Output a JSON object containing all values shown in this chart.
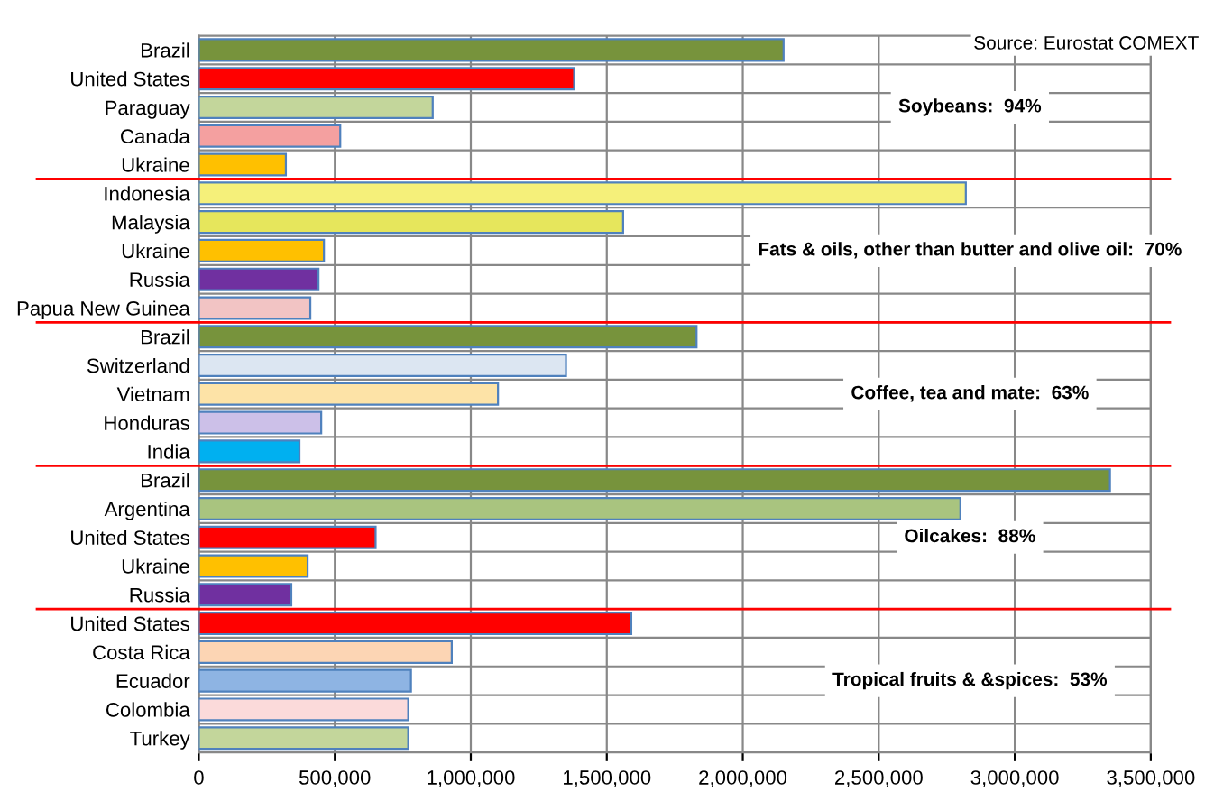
{
  "chart_data": {
    "type": "bar",
    "orientation": "horizontal",
    "categories": [
      "Brazil",
      "United States",
      "Paraguay",
      "Canada",
      "Ukraine",
      "Indonesia",
      "Malaysia",
      "Ukraine",
      "Russia",
      "Papua New Guinea",
      "Brazil",
      "Switzerland",
      "Vietnam",
      "Honduras",
      "India",
      "Brazil",
      "Argentina",
      "United States",
      "Ukraine",
      "Russia",
      "United States",
      "Costa Rica",
      "Ecuador",
      "Colombia",
      "Turkey"
    ],
    "values": [
      2150000,
      1380000,
      860000,
      520000,
      320000,
      2820000,
      1560000,
      460000,
      440000,
      410000,
      1830000,
      1350000,
      1100000,
      450000,
      370000,
      3350000,
      2800000,
      650000,
      400000,
      340000,
      1590000,
      930000,
      780000,
      770000,
      770000
    ],
    "colors": [
      "#77933c",
      "#ff0000",
      "#c3d69b",
      "#f4a0a0",
      "#ffc000",
      "#f5f07a",
      "#e6e65c",
      "#ffc000",
      "#7030a0",
      "#f2c4c4",
      "#77933c",
      "#dce6f2",
      "#fde3a7",
      "#ccc0e8",
      "#00b0f0",
      "#77933c",
      "#a9c47f",
      "#ff0000",
      "#ffc000",
      "#7030a0",
      "#ff0000",
      "#fcd5b4",
      "#8eb4e3",
      "#fbdada",
      "#c3d69b"
    ],
    "xlim": [
      0,
      3500000
    ],
    "xticks": [
      {
        "value": 0,
        "label": "0"
      },
      {
        "value": 500000,
        "label": "500,000"
      },
      {
        "value": 1000000,
        "label": "1,000,000"
      },
      {
        "value": 1500000,
        "label": "1,500,000"
      },
      {
        "value": 2000000,
        "label": "2,000,000"
      },
      {
        "value": 2500000,
        "label": "2,500,000"
      },
      {
        "value": 3000000,
        "label": "3,000,000"
      },
      {
        "value": 3500000,
        "label": "3,500,000"
      }
    ],
    "grid": true,
    "annotations": [
      "Source: Eurostat COMEXT",
      "Soybeans:  94%",
      "Fats & oils, other than butter and olive oil:  70%",
      "Coffee, tea and mate:  63%",
      "Oilcakes:  88%",
      "Tropical fruits & &spices:  53%"
    ]
  }
}
